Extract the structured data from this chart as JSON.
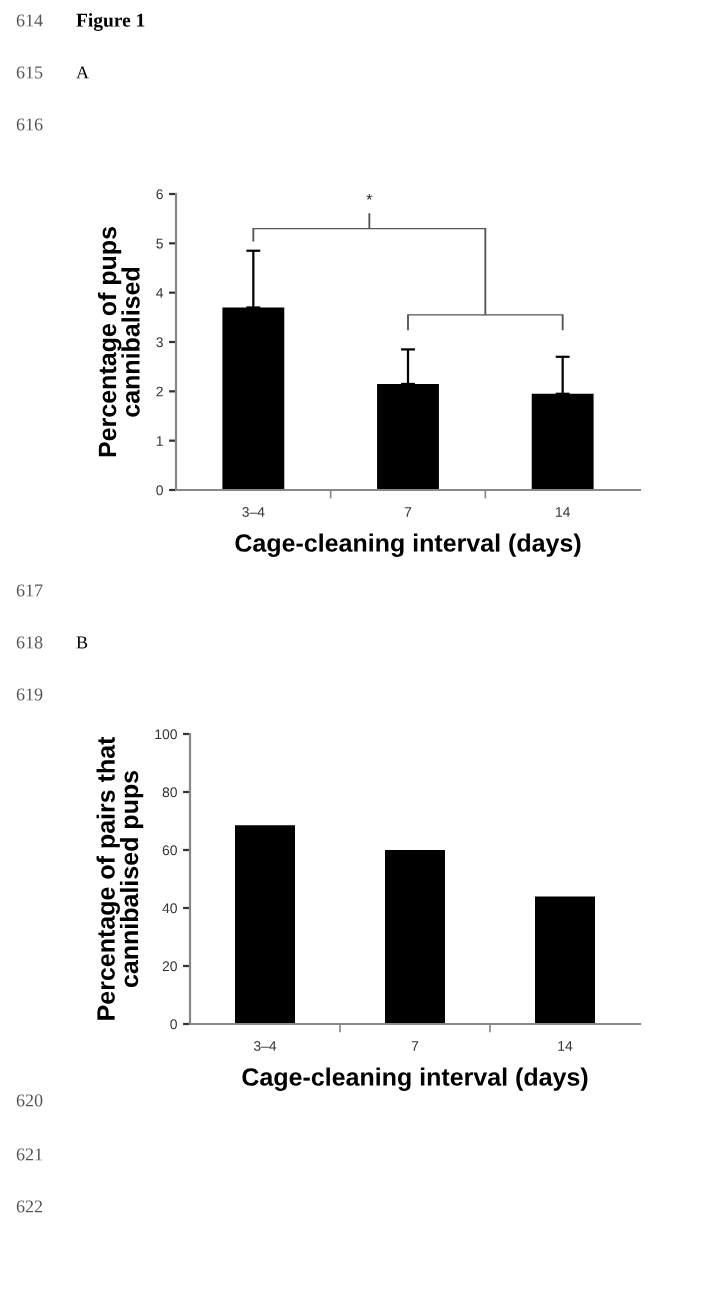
{
  "chart_data": [
    {
      "type": "bar",
      "xlabel": "Cage-cleaning interval (days)",
      "ylabel": "Percentage of pups\ncannibalised",
      "categories": [
        "3–4",
        "7",
        "14"
      ],
      "values": [
        3.7,
        2.15,
        1.95
      ],
      "color": "#000000",
      "errors": [
        [
          3.7,
          4.85
        ],
        [
          2.15,
          2.85
        ],
        [
          1.95,
          2.7
        ]
      ],
      "ylim": [
        0,
        6
      ],
      "yticks": [
        0,
        1,
        2,
        3,
        4,
        5,
        6
      ],
      "grid": false,
      "legend": false,
      "annotations": [
        "*",
        "614",
        "Figure 1",
        "615",
        "A",
        "616",
        "617"
      ]
    },
    {
      "type": "bar",
      "xlabel": "Cage-cleaning interval (days)",
      "ylabel": "Percentage of pairs that\ncannibalised pups",
      "categories": [
        "3–4",
        "7",
        "14"
      ],
      "values": [
        68.5,
        60,
        44
      ],
      "color": "#000000",
      "ylim": [
        0,
        100
      ],
      "yticks": [
        0,
        20,
        40,
        60,
        80,
        100
      ],
      "grid": false,
      "legend": false,
      "annotations": [
        "618",
        "B",
        "619",
        "620",
        "621",
        "622"
      ]
    }
  ]
}
